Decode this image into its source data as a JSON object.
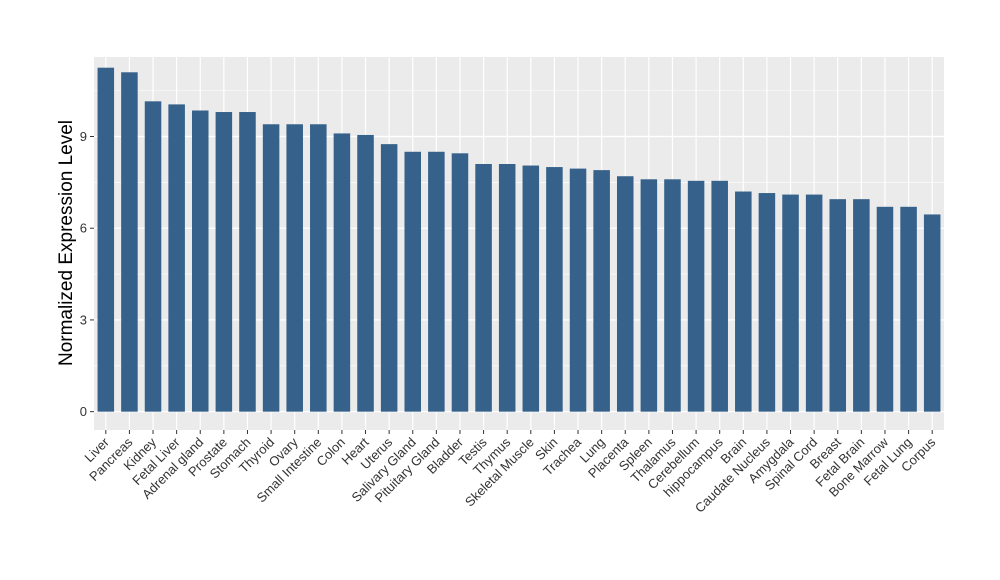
{
  "chart_data": {
    "type": "bar",
    "title": "",
    "xlabel": "",
    "ylabel": "Normalized Expression Level",
    "ylim": [
      -0.6,
      11.6
    ],
    "yticks": [
      0,
      3,
      6,
      9
    ],
    "grid": true,
    "legend": "none",
    "colors": {
      "bar": "#35618a",
      "panel": "#ebebeb",
      "grid": "#ffffff"
    },
    "categories": [
      "Liver",
      "Pancreas",
      "Kidney",
      "Fetal Liver",
      "Adrenal gland",
      "Prostate",
      "Stomach",
      "Thyroid",
      "Ovary",
      "Small Intestine",
      "Colon",
      "Heart",
      "Uterus",
      "Salivary Gland",
      "Pituitary Gland",
      "Bladder",
      "Testis",
      "Thymus",
      "Skeletal Muscle",
      "Skin",
      "Trachea",
      "Lung",
      "Placenta",
      "Spleen",
      "Thalamus",
      "Cerebellum",
      "hippocampus",
      "Brain",
      "Caudate Nucleus",
      "Amygdala",
      "Spinal Cord",
      "Breast",
      "Fetal Brain",
      "Bone Marrow",
      "Fetal Lung",
      "Corpus"
    ],
    "values": [
      11.25,
      11.1,
      10.15,
      10.05,
      9.85,
      9.8,
      9.8,
      9.4,
      9.4,
      9.4,
      9.1,
      9.05,
      8.75,
      8.5,
      8.5,
      8.45,
      8.1,
      8.1,
      8.05,
      8.0,
      7.95,
      7.9,
      7.7,
      7.6,
      7.6,
      7.55,
      7.55,
      7.2,
      7.15,
      7.1,
      7.1,
      6.95,
      6.95,
      6.7,
      6.7,
      6.45
    ]
  }
}
